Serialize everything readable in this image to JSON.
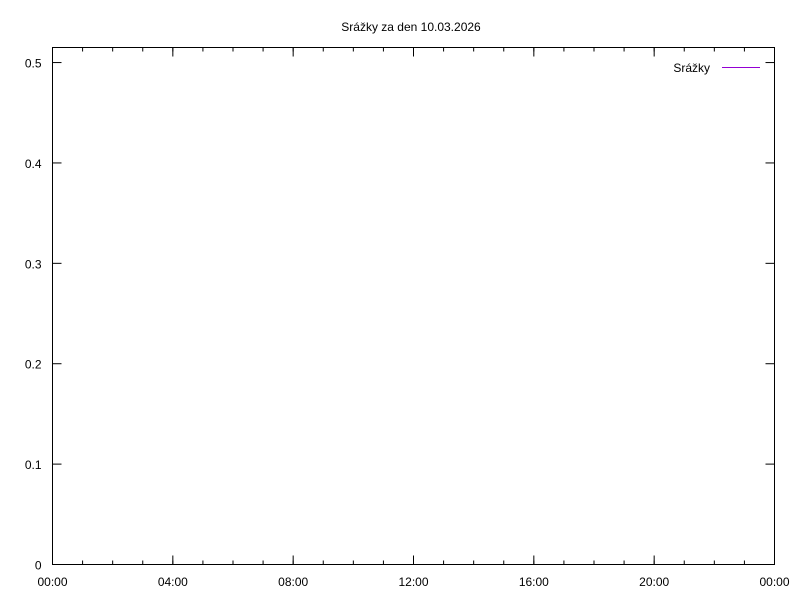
{
  "chart_data": {
    "type": "line",
    "title": "Srážky za den 10.03.2026",
    "xlabel": "",
    "ylabel": "",
    "x_ticks": [
      "00:00",
      "04:00",
      "08:00",
      "12:00",
      "16:00",
      "20:00",
      "00:00"
    ],
    "x_range_hours": [
      0,
      24
    ],
    "x_minor_tick_step_hours": 1,
    "y_ticks": [
      "0",
      "0.1",
      "0.2",
      "0.3",
      "0.4",
      "0.5"
    ],
    "ylim": [
      0,
      0.515
    ],
    "grid": false,
    "legend_position": "top-right",
    "series": [
      {
        "name": "Srážky",
        "color": "#9400d3",
        "x": [],
        "y": []
      }
    ]
  }
}
